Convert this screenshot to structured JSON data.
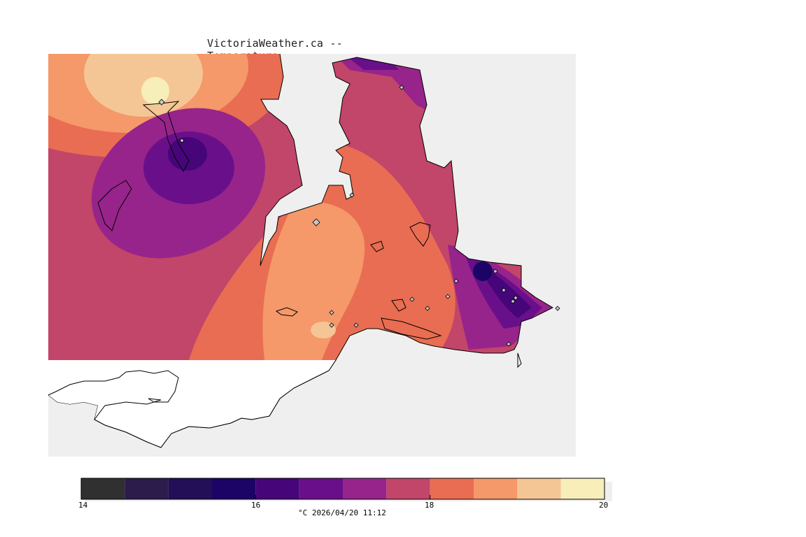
{
  "title": "VictoriaWeather.ca -- Temperature",
  "legend": {
    "unit": "°C",
    "timestamp": "2026/04/20 11:12",
    "min": 14,
    "max": 20,
    "tick_labels": [
      "14",
      "16",
      "18",
      "20"
    ],
    "bands": [
      {
        "from": 14.0,
        "to": 14.5,
        "color": "#303030"
      },
      {
        "from": 14.5,
        "to": 15.0,
        "color": "#2b1c4c"
      },
      {
        "from": 15.0,
        "to": 15.5,
        "color": "#220f58"
      },
      {
        "from": 15.5,
        "to": 16.0,
        "color": "#1c0466"
      },
      {
        "from": 16.0,
        "to": 16.5,
        "color": "#46067a"
      },
      {
        "from": 16.5,
        "to": 17.0,
        "color": "#6a0f8a"
      },
      {
        "from": 17.0,
        "to": 17.5,
        "color": "#97248a"
      },
      {
        "from": 17.5,
        "to": 18.0,
        "color": "#c2456a"
      },
      {
        "from": 18.0,
        "to": 18.5,
        "color": "#e96d52"
      },
      {
        "from": 18.5,
        "to": 19.0,
        "color": "#f5986a"
      },
      {
        "from": 19.0,
        "to": 19.5,
        "color": "#f5c695"
      },
      {
        "from": 19.5,
        "to": 20.0,
        "color": "#f7eeb9"
      }
    ]
  },
  "colors": {
    "water": "#efefef",
    "land_outline": "#000000",
    "station_marker": "#c8c8c8"
  },
  "stations_count": 20
}
